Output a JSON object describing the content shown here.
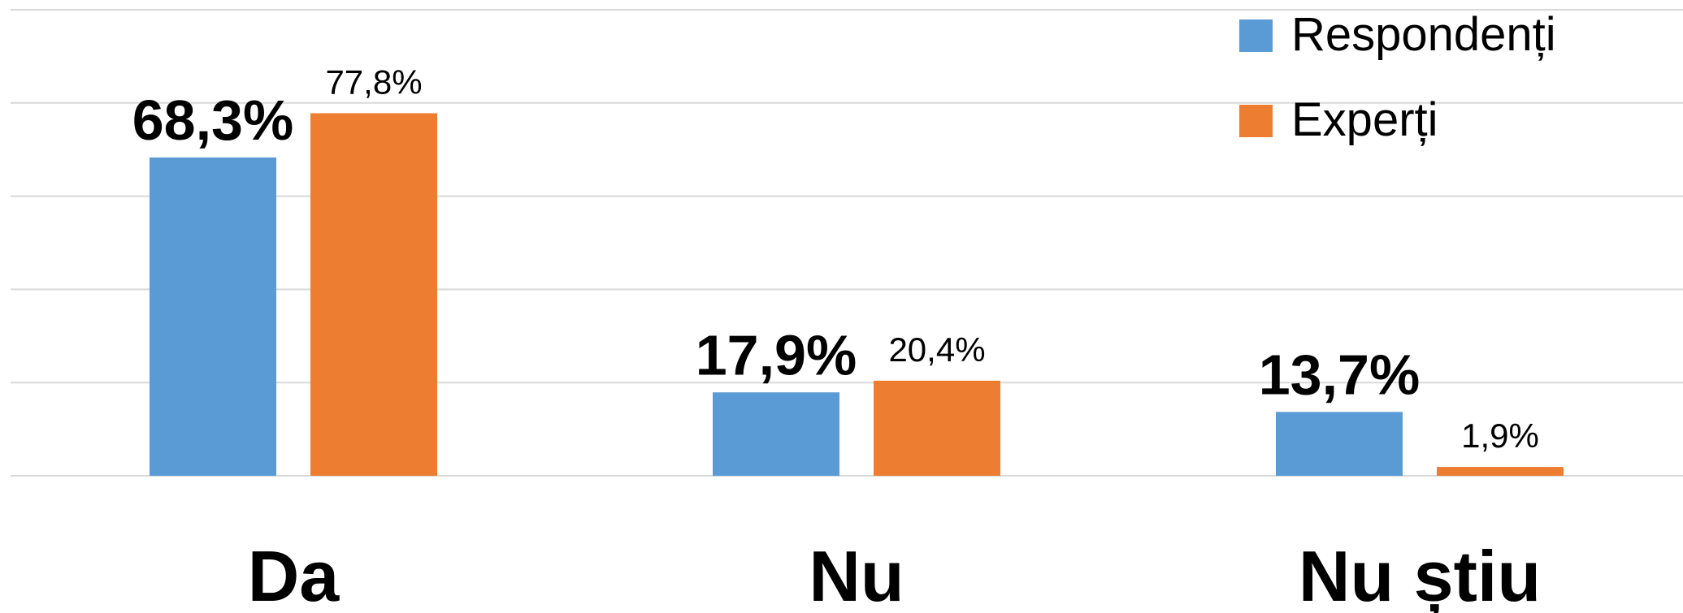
{
  "chart_data": {
    "type": "bar",
    "categories": [
      "Da",
      "Nu",
      "Nu știu"
    ],
    "series": [
      {
        "name": "Respondenți",
        "color": "#5b9bd5",
        "values": [
          68.3,
          17.9,
          13.7
        ],
        "value_labels": [
          "68,3%",
          "17,9%",
          "13,7%"
        ]
      },
      {
        "name": "Experți",
        "color": "#ed7d31",
        "values": [
          77.8,
          20.4,
          1.9
        ],
        "value_labels": [
          "77,8%",
          "20,4%",
          "1,9%"
        ]
      }
    ],
    "ylim": [
      0,
      100
    ],
    "yticks": [
      0,
      20,
      40,
      60,
      80,
      100
    ],
    "grid": true,
    "legend": "top-right"
  }
}
